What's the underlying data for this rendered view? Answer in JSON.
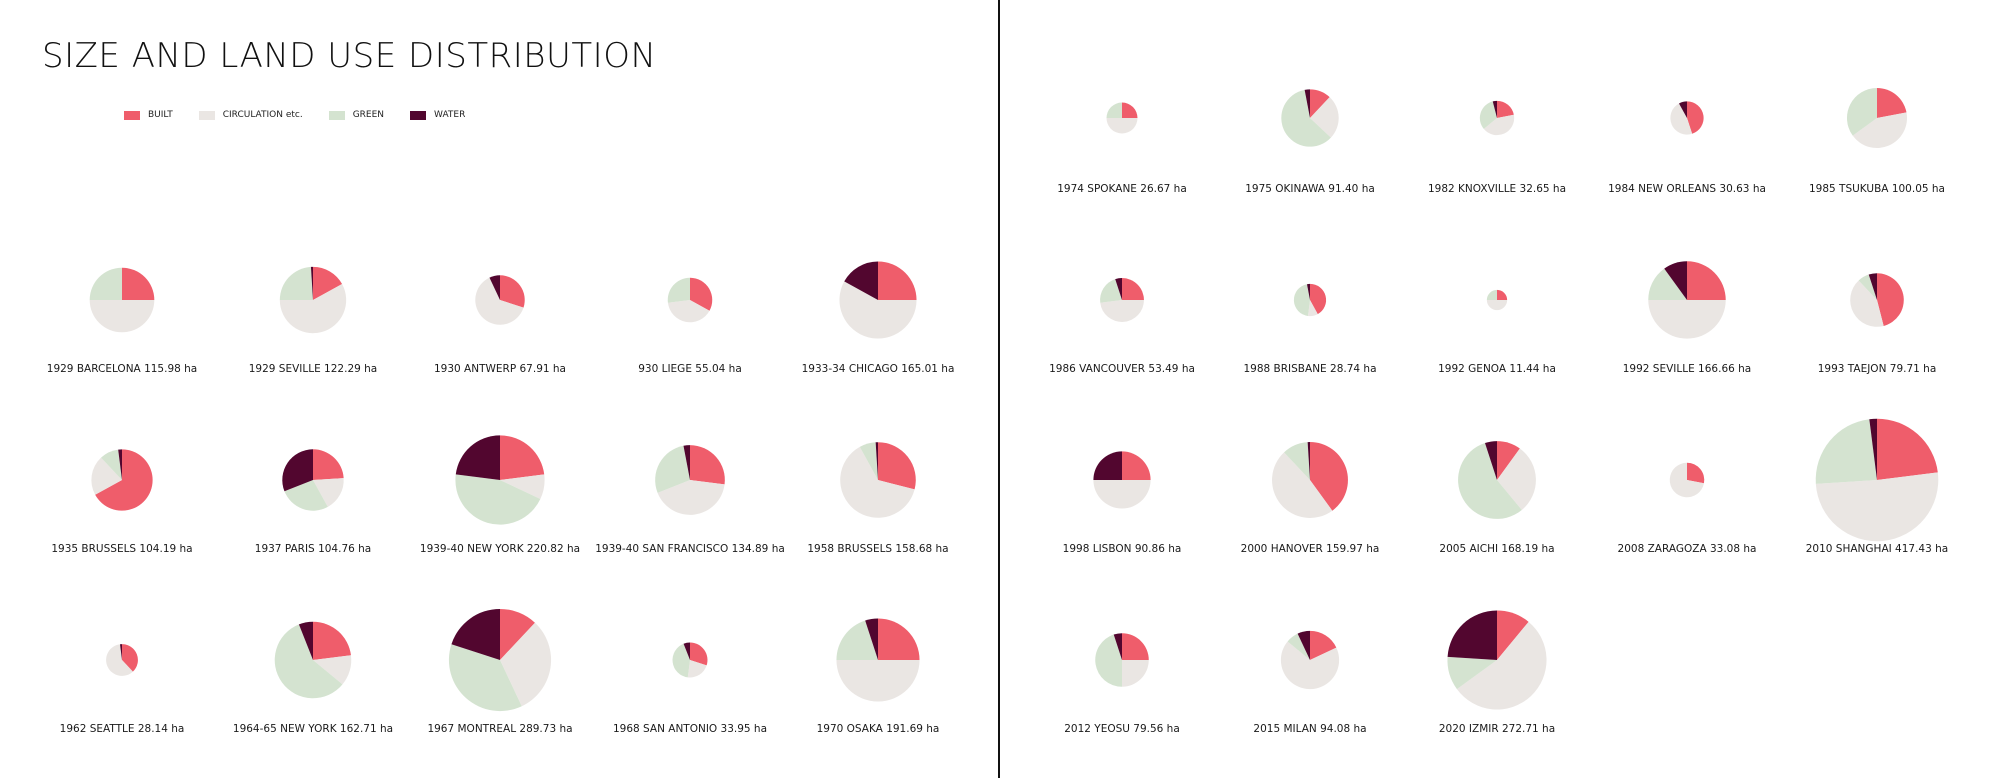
{
  "title": "SIZE AND LAND USE DISTRIBUTION",
  "legend": [
    {
      "label": "BUILT",
      "color": "#ef5d6b"
    },
    {
      "label": "CIRCULATION etc.",
      "color": "#eae6e3"
    },
    {
      "label": "GREEN",
      "color": "#d4e3d0"
    },
    {
      "label": "WATER",
      "color": "#52062f"
    }
  ],
  "chart_data": {
    "type": "pie",
    "title": "SIZE AND LAND USE DISTRIBUTION",
    "categories": [
      "BUILT",
      "CIRCULATION etc.",
      "GREEN",
      "WATER"
    ],
    "pies": [
      {
        "label": "1929 BARCELONA  115.98 ha",
        "area": 115.98,
        "built": 25,
        "circulation": 50,
        "green": 25,
        "water": 0
      },
      {
        "label": "1929 SEVILLE  122.29 ha",
        "area": 122.29,
        "built": 17,
        "circulation": 58,
        "green": 24,
        "water": 1
      },
      {
        "label": "1930 ANTWERP  67.91 ha",
        "area": 67.91,
        "built": 30,
        "circulation": 63,
        "green": 0,
        "water": 7
      },
      {
        "label": "930 LIEGE  55.04 ha",
        "area": 55.04,
        "built": 33,
        "circulation": 40,
        "green": 27,
        "water": 0
      },
      {
        "label": "1933-34 CHICAGO  165.01 ha",
        "area": 165.01,
        "built": 25,
        "circulation": 58,
        "green": 0,
        "water": 17
      },
      {
        "label": "1935 BRUSSELS  104.19 ha",
        "area": 104.19,
        "built": 67,
        "circulation": 21,
        "green": 10,
        "water": 2
      },
      {
        "label": "1937 PARIS  104.76 ha",
        "area": 104.76,
        "built": 24,
        "circulation": 18,
        "green": 27,
        "water": 31
      },
      {
        "label": "1939-40 NEW YORK  220.82 ha",
        "area": 220.82,
        "built": 23,
        "circulation": 9,
        "green": 45,
        "water": 23
      },
      {
        "label": "1939-40 SAN FRANCISCO  134.89 ha",
        "area": 134.89,
        "built": 27,
        "circulation": 42,
        "green": 28,
        "water": 3
      },
      {
        "label": "1958 BRUSSELS  158.68 ha",
        "area": 158.68,
        "built": 29,
        "circulation": 63,
        "green": 7,
        "water": 1
      },
      {
        "label": "1962 SEATTLE 28.14 ha",
        "area": 28.14,
        "built": 38,
        "circulation": 60,
        "green": 0,
        "water": 2
      },
      {
        "label": "1964-65 NEW YORK  162.71 ha",
        "area": 162.71,
        "built": 23,
        "circulation": 13,
        "green": 58,
        "water": 6
      },
      {
        "label": "1967 MONTREAL  289.73 ha",
        "area": 289.73,
        "built": 12,
        "circulation": 31,
        "green": 37,
        "water": 20
      },
      {
        "label": "1968 SAN ANTONIO  33.95 ha",
        "area": 33.95,
        "built": 30,
        "circulation": 22,
        "green": 42,
        "water": 6
      },
      {
        "label": "1970 OSAKA  191.69 ha",
        "area": 191.69,
        "built": 25,
        "circulation": 50,
        "green": 20,
        "water": 5
      },
      {
        "label": "1974 SPOKANE  26.67 ha",
        "area": 26.67,
        "built": 25,
        "circulation": 50,
        "green": 25,
        "water": 0
      },
      {
        "label": "1975 OKINAWA  91.40 ha",
        "area": 91.4,
        "built": 12,
        "circulation": 25,
        "green": 60,
        "water": 3
      },
      {
        "label": "1982 KNOXVILLE  32.65 ha",
        "area": 32.65,
        "built": 22,
        "circulation": 42,
        "green": 32,
        "water": 4
      },
      {
        "label": "1984 NEW ORLEANS  30.63 ha",
        "area": 30.63,
        "built": 45,
        "circulation": 47,
        "green": 0,
        "water": 8
      },
      {
        "label": "1985 TSUKUBA  100.05 ha",
        "area": 100.05,
        "built": 22,
        "circulation": 43,
        "green": 35,
        "water": 0
      },
      {
        "label": "1986 VANCOUVER  53.49 ha",
        "area": 53.49,
        "built": 25,
        "circulation": 48,
        "green": 22,
        "water": 5
      },
      {
        "label": "1988 BRISBANE  28.74 ha",
        "area": 28.74,
        "built": 42,
        "circulation": 10,
        "green": 45,
        "water": 3
      },
      {
        "label": "1992 GENOA  11.44 ha",
        "area": 11.44,
        "built": 25,
        "circulation": 50,
        "green": 25,
        "water": 0
      },
      {
        "label": "1992 SEVILLE  166.66 ha",
        "area": 166.66,
        "built": 25,
        "circulation": 50,
        "green": 15,
        "water": 10
      },
      {
        "label": "1993 TAEJON  79.71 ha",
        "area": 79.71,
        "built": 46,
        "circulation": 42,
        "green": 7,
        "water": 5
      },
      {
        "label": "1998 LISBON  90.86 ha",
        "area": 90.86,
        "built": 25,
        "circulation": 50,
        "green": 0,
        "water": 25
      },
      {
        "label": "2000 HANOVER  159.97 ha",
        "area": 159.97,
        "built": 40,
        "circulation": 48,
        "green": 11,
        "water": 1
      },
      {
        "label": "2005 AICHI  168.19 ha",
        "area": 168.19,
        "built": 10,
        "circulation": 29,
        "green": 56,
        "water": 5
      },
      {
        "label": "2008 ZARAGOZA  33.08 ha",
        "area": 33.08,
        "built": 28,
        "circulation": 72,
        "green": 0,
        "water": 0
      },
      {
        "label": "2010 SHANGHAI  417.43 ha",
        "area": 417.43,
        "built": 23,
        "circulation": 51,
        "green": 24,
        "water": 2
      },
      {
        "label": "2012 YEOSU  79.56 ha",
        "area": 79.56,
        "built": 25,
        "circulation": 25,
        "green": 45,
        "water": 5
      },
      {
        "label": "2015 MILAN  94.08 ha",
        "area": 94.08,
        "built": 18,
        "circulation": 68,
        "green": 7,
        "water": 7
      },
      {
        "label": "2020 IZMIR  272.71 ha",
        "area": 272.71,
        "built": 11,
        "circulation": 54,
        "green": 11,
        "water": 24
      }
    ]
  }
}
